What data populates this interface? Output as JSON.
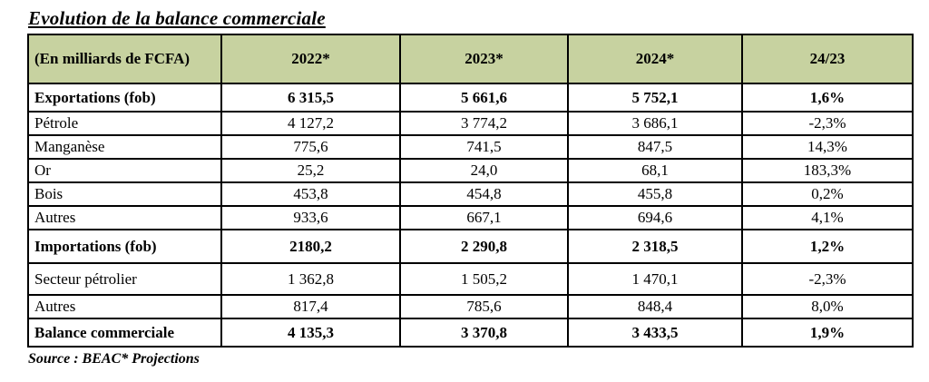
{
  "page": {
    "title": "Evolution de la balance commerciale",
    "source": "Source : BEAC* Projections"
  },
  "colors": {
    "header_bg": "#c7d2a0",
    "border": "#000000"
  },
  "table": {
    "headers": [
      "(En milliards de FCFA)",
      "2022*",
      "2023*",
      "2024*",
      "24/23"
    ],
    "rows": [
      {
        "bold": true,
        "cells": [
          "Exportations (fob)",
          "6 315,5",
          "5 661,6",
          "5 752,1",
          "1,6%"
        ]
      },
      {
        "bold": false,
        "cells": [
          "Pétrole",
          "4 127,2",
          "3 774,2",
          "3 686,1",
          "-2,3%"
        ]
      },
      {
        "bold": false,
        "cells": [
          "Manganèse",
          "775,6",
          "741,5",
          "847,5",
          "14,3%"
        ]
      },
      {
        "bold": false,
        "cells": [
          "Or",
          "25,2",
          "24,0",
          "68,1",
          "183,3%"
        ]
      },
      {
        "bold": false,
        "cells": [
          "Bois",
          "453,8",
          "454,8",
          "455,8",
          "0,2%"
        ]
      },
      {
        "bold": false,
        "cells": [
          "Autres",
          "933,6",
          "667,1",
          "694,6",
          "4,1%"
        ]
      },
      {
        "bold": true,
        "cells": [
          "Importations (fob)",
          "2180,2",
          "2 290,8",
          "2 318,5",
          "1,2%"
        ]
      },
      {
        "bold": false,
        "cells": [
          "Secteur pétrolier",
          "1 362,8",
          "1 505,2",
          "1 470,1",
          "-2,3%"
        ]
      },
      {
        "bold": false,
        "cells": [
          "Autres",
          "817,4",
          "785,6",
          "848,4",
          "8,0%"
        ]
      },
      {
        "bold": true,
        "cells": [
          "Balance commerciale",
          "4 135,3",
          "3 370,8",
          "3 433,5",
          "1,9%"
        ]
      }
    ]
  }
}
